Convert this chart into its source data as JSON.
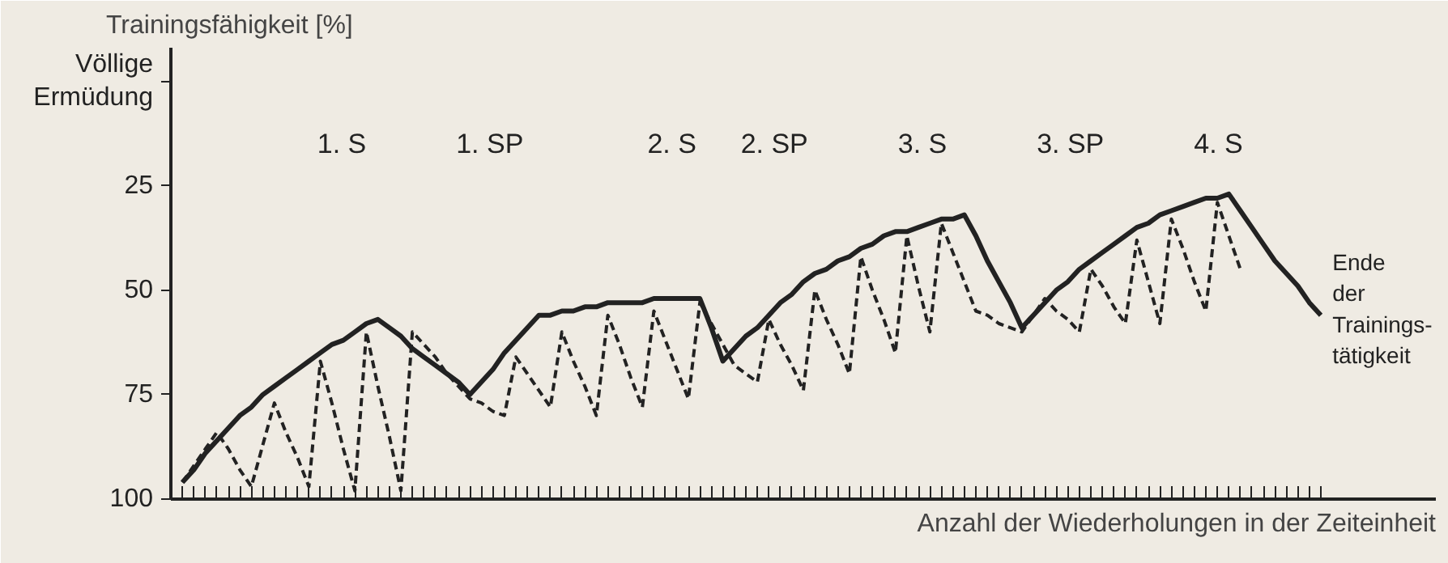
{
  "chart_data": {
    "type": "line",
    "ylabel": "Trainingsfähigkeit [%]",
    "xlabel": "Anzahl der Wiederholungen in der Zeiteinheit",
    "categories": [
      null,
      null,
      null,
      null,
      null,
      null,
      null,
      null,
      null,
      null,
      null,
      null,
      null,
      null,
      null,
      null,
      null,
      null,
      null,
      null,
      null,
      null,
      null,
      null,
      null,
      null,
      null,
      null,
      null,
      null,
      null,
      null,
      null,
      null,
      null,
      null,
      null,
      null,
      null,
      null,
      null,
      null,
      null,
      null,
      null,
      null,
      null,
      null,
      null,
      null,
      null,
      null,
      null,
      null,
      null,
      null,
      null,
      null,
      null,
      null,
      null,
      null,
      null,
      null,
      null,
      null,
      null,
      null,
      null,
      null,
      null,
      null,
      null,
      null,
      null,
      null,
      null,
      null,
      null,
      null,
      null,
      null,
      null,
      null,
      null,
      null,
      null,
      null,
      null,
      null,
      null,
      null,
      null,
      null,
      null,
      null,
      null,
      null,
      null,
      null
    ],
    "ylim": [
      100,
      -8
    ],
    "yticks": [
      100,
      75,
      50,
      25,
      {
        "value": 0,
        "label": "Völlige\nErmüdung"
      }
    ],
    "tick_labels": "y",
    "grid": false,
    "marker": "none",
    "series": [
      {
        "color": "#222222",
        "line_style": "solid",
        "values": [
          96,
          93,
          89,
          86,
          83,
          80,
          78,
          75,
          73,
          71,
          69,
          67,
          65,
          63,
          62,
          60,
          58,
          57,
          59,
          61,
          64,
          66,
          68,
          70,
          72,
          75,
          72,
          69,
          65,
          62,
          59,
          56,
          56,
          55,
          55,
          54,
          54,
          53,
          53,
          53,
          53,
          52,
          52,
          52,
          52,
          52,
          59,
          67,
          64,
          61,
          59,
          56,
          53,
          51,
          48,
          46,
          45,
          43,
          42,
          40,
          39,
          37,
          36,
          36,
          35,
          34,
          33,
          33,
          32,
          37,
          43,
          48,
          53,
          59,
          56,
          53,
          50,
          48,
          45,
          43,
          41,
          39,
          37,
          35,
          34,
          32,
          31,
          30,
          29,
          28,
          28,
          27,
          31,
          35,
          39,
          43,
          46,
          49,
          53,
          56
        ]
      },
      {
        "color": "#222222",
        "line_style": "dashed",
        "values": [
          96,
          92,
          88,
          84,
          88,
          93,
          97,
          87,
          77,
          84,
          90,
          97,
          67,
          77,
          88,
          98,
          60,
          73,
          85,
          98,
          60,
          63,
          66,
          70,
          73,
          76,
          77,
          79,
          80,
          66,
          70,
          74,
          78,
          60,
          67,
          73,
          80,
          56,
          63,
          71,
          78,
          55,
          62,
          69,
          76,
          53,
          58,
          63,
          68,
          70,
          72,
          57,
          63,
          68,
          74,
          50,
          57,
          63,
          70,
          42,
          50,
          57,
          65,
          37,
          49,
          60,
          34,
          41,
          48,
          55,
          56,
          58,
          59,
          60,
          56,
          52,
          55,
          57,
          60,
          45,
          49,
          54,
          58,
          38,
          48,
          58,
          33,
          40,
          48,
          55,
          29,
          37,
          45,
          null,
          null,
          null,
          null,
          null,
          null,
          null
        ]
      }
    ],
    "annotations": [
      "1. S",
      "1. SP",
      "2. S",
      "2. SP",
      "3. S",
      "3. SP",
      "4. S",
      "Ende\nder\nTrainings-\ntätigkeit"
    ]
  }
}
